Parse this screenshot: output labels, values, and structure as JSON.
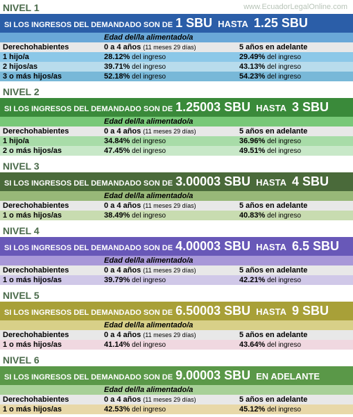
{
  "watermark": "www.EcuadorLegalOnline.com",
  "labels": {
    "header_pre": "SI LOS INGRESOS DEL DEMANDADO SON DE",
    "header_mid": "HASTA",
    "header_end": "EN ADELANTE",
    "edad": "Edad del/la alimentado/a",
    "derecho": "Derechohabientes",
    "col_a": "0 a 4 años",
    "col_a_note": "(11 meses 29 días)",
    "col_b": "5 años en adelante",
    "suffix": " del ingreso"
  },
  "colors": {
    "nivel_title": "#4a6a4a"
  },
  "niveles": [
    {
      "title": "NIVEL 1",
      "from": "1 SBU",
      "to": "1.25 SBU",
      "header_bg": "#2b5ea8",
      "edad_bg": "#6aa8d8",
      "cols_bg": "#e8e8e8",
      "rows": [
        {
          "label": "1 hijo/a",
          "a": "28.12%",
          "b": "29.49%",
          "bg": "#8cc8e8"
        },
        {
          "label": "2 hijos/as",
          "a": "39.71%",
          "b": "43.13%",
          "bg": "#b8dcec"
        },
        {
          "label": "3 o más hijos/as",
          "a": "52.18%",
          "b": "54.23%",
          "bg": "#78b8d8"
        }
      ]
    },
    {
      "title": "NIVEL 2",
      "from": "1.25003 SBU",
      "to": "3 SBU",
      "header_bg": "#3a8a3a",
      "edad_bg": "#78c878",
      "cols_bg": "#e8e8e8",
      "rows": [
        {
          "label": "1 hijo/a",
          "a": "34.84%",
          "b": "36.96%",
          "bg": "#a8dca8"
        },
        {
          "label": "2 o más hijos/as",
          "a": "47.45%",
          "b": "49.51%",
          "bg": "#c8e8c8"
        }
      ]
    },
    {
      "title": "NIVEL 3",
      "from": "3.00003 SBU",
      "to": "4 SBU",
      "header_bg": "#4a6a3a",
      "edad_bg": "#98b878",
      "cols_bg": "#e8e8e8",
      "rows": [
        {
          "label": "1 o más hijos/as",
          "a": "38.49%",
          "b": "40.83%",
          "bg": "#c8dcb0"
        }
      ]
    },
    {
      "title": "NIVEL 4",
      "from": "4.00003 SBU",
      "to": "6.5 SBU",
      "header_bg": "#6858b8",
      "edad_bg": "#a898d8",
      "cols_bg": "#e8e8e8",
      "rows": [
        {
          "label": "1 o más hijos/as",
          "a": "39.79%",
          "b": "42.21%",
          "bg": "#d0c8e8"
        }
      ]
    },
    {
      "title": "NIVEL 5",
      "from": "6.50003 SBU",
      "to": "9 SBU",
      "header_bg": "#a8a038",
      "edad_bg": "#d8d088",
      "cols_bg": "#e8e8e8",
      "rows": [
        {
          "label": "1 o más hijos/as",
          "a": "41.14%",
          "b": "43.64%",
          "bg": "#f0d8e0"
        }
      ]
    },
    {
      "title": "NIVEL 6",
      "from": "9.00003 SBU",
      "to": null,
      "header_bg": "#5a9848",
      "edad_bg": "#a8d098",
      "cols_bg": "#e8e8e8",
      "rows": [
        {
          "label": "1 o más hijos/as",
          "a": "42.53%",
          "b": "45.12%",
          "bg": "#e8d8a8"
        }
      ]
    }
  ]
}
